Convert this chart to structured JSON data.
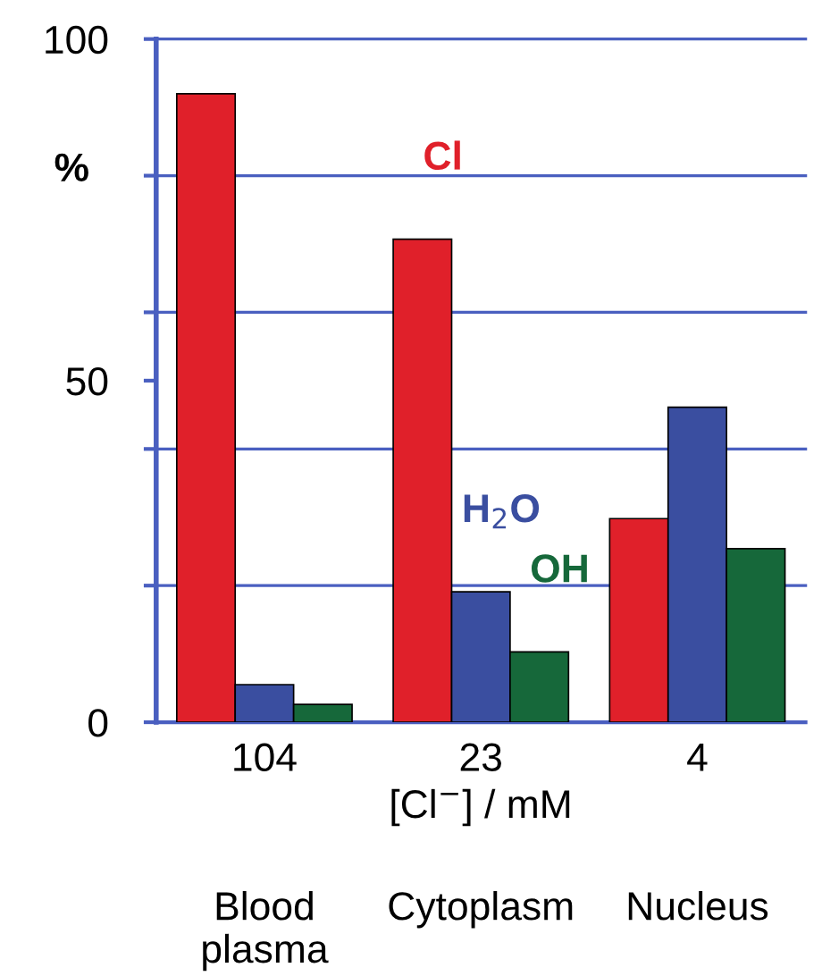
{
  "chart_data": {
    "type": "bar",
    "categories": [
      "104",
      "23",
      "4"
    ],
    "xlabel": "[Cl$^{−}$] / mM",
    "ylabel": "%",
    "series": [
      {
        "name": "Cl",
        "color": "#e0202a",
        "values": [
          92,
          70.7,
          29.8
        ]
      },
      {
        "name": "H$_{2}$O",
        "color": "#3a4ea0",
        "values": [
          5.5,
          19.1,
          46.1
        ]
      },
      {
        "name": "OH",
        "color": "#16683a",
        "values": [
          2.6,
          10.3,
          25.4
        ]
      }
    ],
    "ylim": [
      0,
      100
    ],
    "yticks": [
      0,
      {
        "value": 20,
        "label": null
      },
      {
        "value": 40,
        "label": null
      },
      50,
      {
        "value": 60,
        "label": null
      },
      {
        "value": 80,
        "label": null
      },
      100
    ],
    "ref_lines": [
      {
        "axis": "y",
        "value": 20,
        "color": "#4a5fc0"
      },
      {
        "axis": "y",
        "value": 40,
        "color": "#4a5fc0"
      },
      {
        "axis": "y",
        "value": 60,
        "color": "#4a5fc0"
      },
      {
        "axis": "y",
        "value": 80,
        "color": "#4a5fc0"
      }
    ],
    "annotations": [
      "Blood\nplasma",
      "Cytoplasm",
      "Nucleus"
    ],
    "grid": false,
    "legend": false
  }
}
